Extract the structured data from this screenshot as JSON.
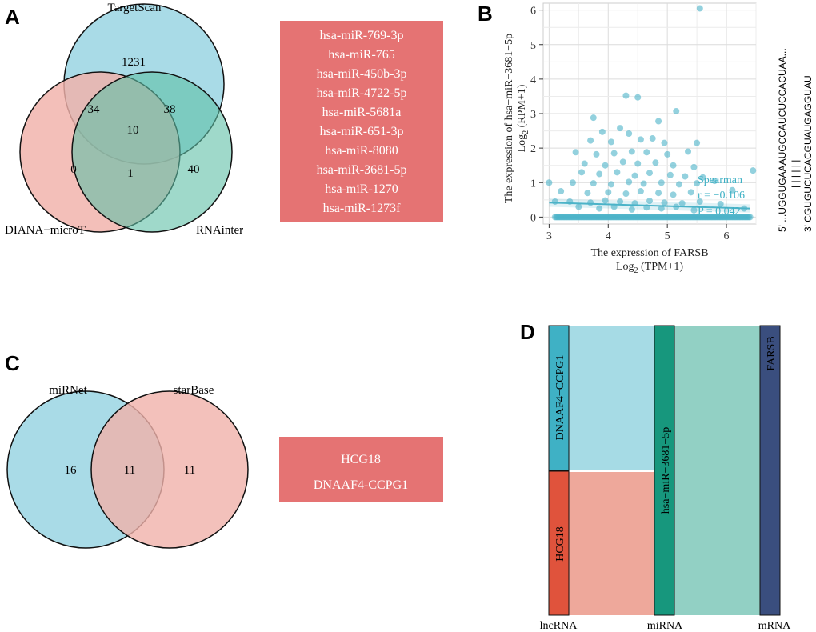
{
  "panels": {
    "a": "A",
    "b": "B",
    "c": "C",
    "d": "D"
  },
  "venn_a": {
    "sets": [
      "TargetScan",
      "DIANA−microT",
      "RNAinter"
    ],
    "counts": {
      "targetscan_only": "1231",
      "targetscan_diana": "34",
      "targetscan_rnainter": "38",
      "all_three": "10",
      "diana_only": "0",
      "diana_rnainter": "1",
      "rnainter_only": "40"
    },
    "colors": {
      "targetscan": "#a9dbe7",
      "diana": "#f0b1aa",
      "rnainter": "#8ccfbe"
    }
  },
  "mirna_list": {
    "items": [
      "hsa-miR-769-3p",
      "hsa-miR-765",
      "hsa-miR-450b-3p",
      "hsa-miR-4722-5p",
      "hsa-miR-5681a",
      "hsa-miR-651-3p",
      "hsa-miR-8080",
      "hsa-miR-3681-5p",
      "hsa-miR-1270",
      "hsa-miR-1273f"
    ],
    "color": "#e57373"
  },
  "scatter": {
    "ylabel_line1": "The expression of hsa−miR−3681−5p",
    "ylabel_line2": "Log2 (RPM+1)",
    "ylabel_line2_base": "Log",
    "ylabel_line2_sub": "2",
    "ylabel_line2_rest": " (RPM+1)",
    "xlabel_line1": "The expression of FARSB",
    "xlabel_line2_base": "Log",
    "xlabel_line2_sub": "2",
    "xlabel_line2_rest": " (TPM+1)",
    "stat_method": "Spearman",
    "stat_r": "r = −0.106",
    "stat_p": "P = 0.042",
    "point_color": "#4bb3c8"
  },
  "sequence": {
    "top": "5' ...UGGUGAAAUGCCAUCUCCACUAA...",
    "bonds": "| | | | | |",
    "bottom": "3' CGUGUCUCACGUAUGAGGUAU"
  },
  "venn_c": {
    "sets": [
      "miRNet",
      "starBase"
    ],
    "counts": {
      "mirnet_only": "16",
      "both": "11",
      "starbase_only": "11"
    },
    "colors": {
      "mirnet": "#a9dbe7",
      "starbase": "#f0b1aa"
    }
  },
  "lncrna_list": {
    "items": [
      "HCG18",
      "DNAAF4-CCPG1"
    ],
    "color": "#e57373"
  },
  "sankey": {
    "columns": [
      "lncRNA",
      "miRNA",
      "mRNA"
    ],
    "nodes": {
      "lnc_top": "DNAAF4−CCPG1",
      "lnc_bottom": "HCG18",
      "mirna": "hsa−miR−3681−5p",
      "mrna": "FARSB"
    },
    "colors": {
      "lnc_top": "#3fb1c5",
      "lnc_bottom": "#e0533c",
      "mirna": "#17977d",
      "mrna": "#3a4e7e",
      "flow_top": "#a6dbe5",
      "flow_bottom": "#eea89b",
      "flow_right": "#92d0c4"
    }
  },
  "chart_data": [
    {
      "type": "venn",
      "title": "A",
      "sets": [
        "TargetScan",
        "DIANA-microT",
        "RNAinter"
      ],
      "regions": {
        "TargetScan only": 1231,
        "TargetScan & DIANA-microT": 34,
        "TargetScan & RNAinter": 38,
        "All three": 10,
        "DIANA-microT only": 0,
        "DIANA-microT & RNAinter": 1,
        "RNAinter only": 40
      }
    },
    {
      "type": "scatter",
      "title": "B",
      "xlabel": "The expression of FARSB Log2 (TPM+1)",
      "ylabel": "The expression of hsa-miR-3681-5p Log2 (RPM+1)",
      "xlim": [
        2.9,
        6.5
      ],
      "ylim": [
        -0.2,
        6.2
      ],
      "xticks": [
        3,
        4,
        5,
        6
      ],
      "yticks": [
        0,
        1,
        2,
        3,
        4,
        5,
        6
      ],
      "points": [
        [
          5.55,
          6.05
        ],
        [
          4.3,
          3.52
        ],
        [
          4.5,
          3.47
        ],
        [
          5.15,
          3.07
        ],
        [
          3.75,
          2.88
        ],
        [
          4.2,
          2.58
        ],
        [
          4.85,
          2.78
        ],
        [
          3.9,
          2.47
        ],
        [
          4.35,
          2.42
        ],
        [
          4.75,
          2.28
        ],
        [
          3.7,
          2.22
        ],
        [
          4.05,
          2.18
        ],
        [
          4.55,
          2.25
        ],
        [
          4.95,
          2.15
        ],
        [
          5.5,
          2.15
        ],
        [
          3.45,
          1.88
        ],
        [
          3.8,
          1.82
        ],
        [
          4.1,
          1.85
        ],
        [
          4.4,
          1.9
        ],
        [
          4.65,
          1.88
        ],
        [
          5.0,
          1.82
        ],
        [
          5.35,
          1.9
        ],
        [
          3.6,
          1.55
        ],
        [
          3.95,
          1.5
        ],
        [
          4.25,
          1.6
        ],
        [
          4.5,
          1.55
        ],
        [
          4.8,
          1.58
        ],
        [
          5.1,
          1.5
        ],
        [
          5.45,
          1.45
        ],
        [
          3.55,
          1.3
        ],
        [
          3.85,
          1.25
        ],
        [
          4.15,
          1.3
        ],
        [
          4.45,
          1.2
        ],
        [
          4.7,
          1.28
        ],
        [
          5.05,
          1.22
        ],
        [
          5.3,
          1.18
        ],
        [
          5.6,
          1.15
        ],
        [
          6.45,
          1.35
        ],
        [
          3.0,
          1.0
        ],
        [
          3.4,
          1.0
        ],
        [
          3.75,
          0.98
        ],
        [
          4.05,
          0.95
        ],
        [
          4.35,
          1.02
        ],
        [
          4.6,
          0.97
        ],
        [
          4.9,
          1.0
        ],
        [
          5.2,
          0.95
        ],
        [
          5.5,
          0.98
        ],
        [
          5.8,
          1.05
        ],
        [
          3.2,
          0.75
        ],
        [
          3.65,
          0.7
        ],
        [
          4.0,
          0.72
        ],
        [
          4.3,
          0.68
        ],
        [
          4.55,
          0.75
        ],
        [
          4.85,
          0.7
        ],
        [
          5.1,
          0.65
        ],
        [
          5.4,
          0.72
        ],
        [
          6.1,
          0.78
        ],
        [
          3.35,
          0.45
        ],
        [
          3.7,
          0.42
        ],
        [
          3.95,
          0.48
        ],
        [
          4.2,
          0.45
        ],
        [
          4.45,
          0.4
        ],
        [
          4.7,
          0.47
        ],
        [
          4.95,
          0.42
        ],
        [
          5.25,
          0.4
        ],
        [
          5.55,
          0.45
        ],
        [
          5.9,
          0.38
        ],
        [
          3.1,
          0.45
        ],
        [
          3.5,
          0.3
        ],
        [
          3.85,
          0.25
        ],
        [
          4.1,
          0.3
        ],
        [
          4.4,
          0.22
        ],
        [
          4.65,
          0.28
        ],
        [
          4.9,
          0.25
        ],
        [
          5.15,
          0.3
        ],
        [
          5.45,
          0.2
        ],
        [
          6.3,
          0.25
        ]
      ],
      "baseline_x_range": [
        3.1,
        6.4
      ],
      "baseline_y": 0,
      "trend": {
        "x": [
          3.0,
          6.4
        ],
        "y": [
          0.42,
          0.25
        ]
      },
      "annotations": [
        "Spearman",
        "r = -0.106",
        "P = 0.042"
      ]
    },
    {
      "type": "venn",
      "title": "C",
      "sets": [
        "miRNet",
        "starBase"
      ],
      "regions": {
        "miRNet only": 16,
        "Both": 11,
        "starBase only": 11
      }
    },
    {
      "type": "sankey",
      "title": "D",
      "columns": [
        "lncRNA",
        "miRNA",
        "mRNA"
      ],
      "nodes": [
        {
          "name": "DNAAF4-CCPG1",
          "column": "lncRNA",
          "value": 1
        },
        {
          "name": "HCG18",
          "column": "lncRNA",
          "value": 1
        },
        {
          "name": "hsa-miR-3681-5p",
          "column": "miRNA",
          "value": 2
        },
        {
          "name": "FARSB",
          "column": "mRNA",
          "value": 2
        }
      ],
      "links": [
        {
          "source": "DNAAF4-CCPG1",
          "target": "hsa-miR-3681-5p",
          "value": 1
        },
        {
          "source": "HCG18",
          "target": "hsa-miR-3681-5p",
          "value": 1
        },
        {
          "source": "hsa-miR-3681-5p",
          "target": "FARSB",
          "value": 2
        }
      ]
    }
  ]
}
